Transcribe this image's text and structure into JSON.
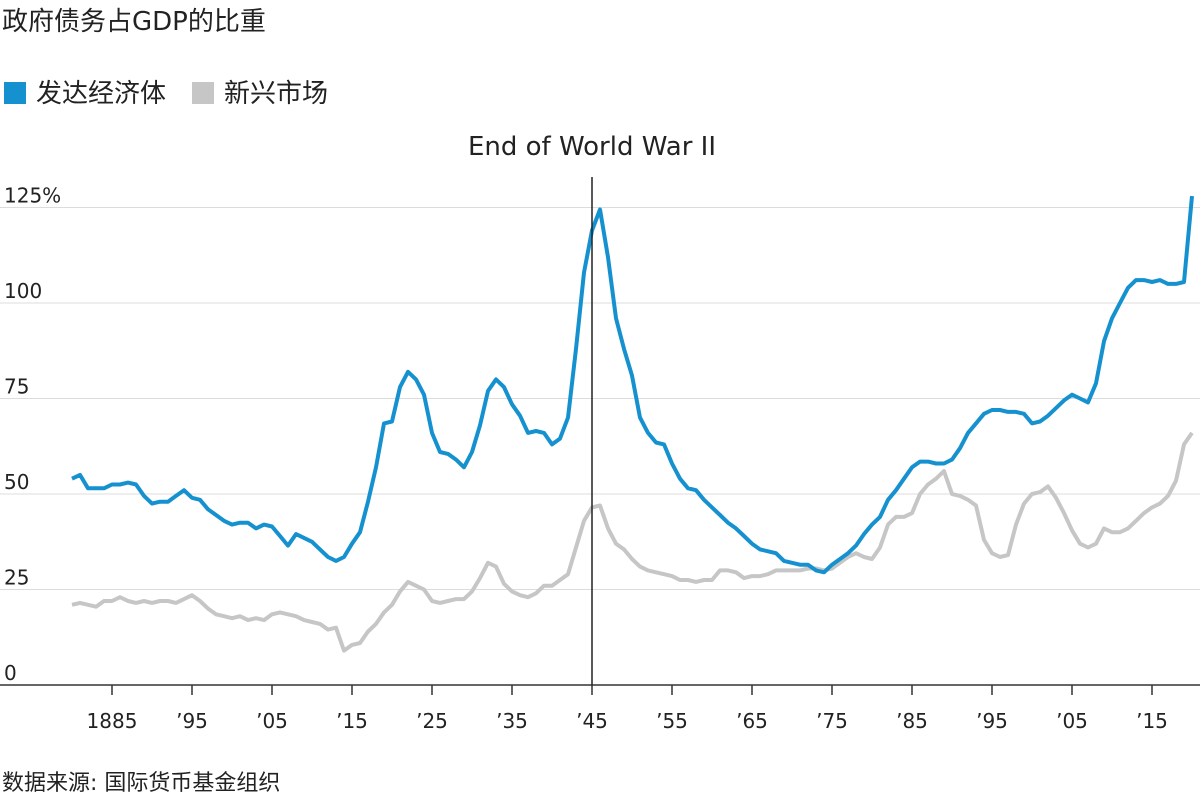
{
  "chart_data": {
    "type": "line",
    "title": "政府债务占GDP的比重",
    "source": "数据来源: 国际货币基金组织",
    "annotation": {
      "text": "End of World War II",
      "x": 1945
    },
    "x": [
      1880,
      1881,
      1882,
      1883,
      1884,
      1885,
      1886,
      1887,
      1888,
      1889,
      1890,
      1891,
      1892,
      1893,
      1894,
      1895,
      1896,
      1897,
      1898,
      1899,
      1900,
      1901,
      1902,
      1903,
      1904,
      1905,
      1906,
      1907,
      1908,
      1909,
      1910,
      1911,
      1912,
      1913,
      1914,
      1915,
      1916,
      1917,
      1918,
      1919,
      1920,
      1921,
      1922,
      1923,
      1924,
      1925,
      1926,
      1927,
      1928,
      1929,
      1930,
      1931,
      1932,
      1933,
      1934,
      1935,
      1936,
      1937,
      1938,
      1939,
      1940,
      1941,
      1942,
      1943,
      1944,
      1945,
      1946,
      1947,
      1948,
      1949,
      1950,
      1951,
      1952,
      1953,
      1954,
      1955,
      1956,
      1957,
      1958,
      1959,
      1960,
      1961,
      1962,
      1963,
      1964,
      1965,
      1966,
      1967,
      1968,
      1969,
      1970,
      1971,
      1972,
      1973,
      1974,
      1975,
      1976,
      1977,
      1978,
      1979,
      1980,
      1981,
      1982,
      1983,
      1984,
      1985,
      1986,
      1987,
      1988,
      1989,
      1990,
      1991,
      1992,
      1993,
      1994,
      1995,
      1996,
      1997,
      1998,
      1999,
      2000,
      2001,
      2002,
      2003,
      2004,
      2005,
      2006,
      2007,
      2008,
      2009,
      2010,
      2011,
      2012,
      2013,
      2014,
      2015,
      2016,
      2017,
      2018,
      2019,
      2020
    ],
    "series": [
      {
        "name": "发达经济体",
        "color": "#1691d0",
        "values": [
          54,
          55,
          51.5,
          51.5,
          51.5,
          52.5,
          52.5,
          53,
          52.5,
          49.5,
          47.5,
          48,
          48,
          49.5,
          51,
          49,
          48.5,
          46,
          44.5,
          43,
          42,
          42.5,
          42.5,
          41,
          42,
          41.5,
          39,
          36.5,
          39.5,
          38.5,
          37.5,
          35.5,
          33.5,
          32.5,
          33.5,
          37,
          40,
          48,
          57,
          68.5,
          69,
          78,
          82,
          80,
          76,
          66,
          61,
          60.5,
          59,
          57,
          61,
          68,
          77,
          80,
          78,
          73.5,
          70.5,
          66,
          66.5,
          66,
          63,
          64.5,
          70,
          88,
          108,
          119,
          124.5,
          112,
          96,
          88,
          81,
          70,
          66,
          63.5,
          63,
          58,
          54,
          51.5,
          51,
          48.5,
          46.5,
          44.5,
          42.5,
          41,
          39,
          37,
          35.5,
          35,
          34.5,
          32.5,
          32,
          31.5,
          31.5,
          30,
          29.5,
          31.5,
          33,
          34.5,
          36.5,
          39.5,
          42,
          44,
          48.5,
          51,
          54,
          57,
          58.5,
          58.5,
          58,
          58,
          59,
          62,
          66,
          68.5,
          71,
          72,
          72,
          71.5,
          71.5,
          71,
          68.5,
          69,
          70.5,
          72.5,
          74.5,
          76,
          75,
          74,
          79,
          90,
          96,
          100,
          104,
          106,
          106,
          105.5,
          106,
          105,
          105,
          105.5,
          128
        ]
      },
      {
        "name": "新兴市场",
        "color": "#c6c6c6",
        "values": [
          21,
          21.5,
          21,
          20.5,
          22,
          22,
          23,
          22,
          21.5,
          22,
          21.5,
          22,
          22,
          21.5,
          22.5,
          23.5,
          22,
          20,
          18.5,
          18,
          17.5,
          18,
          17,
          17.5,
          17,
          18.5,
          19,
          18.5,
          18,
          17,
          16.5,
          16,
          14.5,
          15,
          9,
          10.5,
          11,
          14,
          16,
          19,
          21,
          24.5,
          27,
          26,
          25,
          22,
          21.5,
          22,
          22.5,
          22.5,
          24.5,
          28,
          32,
          31,
          26.5,
          24.5,
          23.5,
          23,
          24,
          26,
          26,
          27.5,
          29,
          36,
          43,
          46.5,
          47,
          41,
          37,
          35.5,
          33,
          31,
          30,
          29.5,
          29,
          28.5,
          27.5,
          27.5,
          27,
          27.5,
          27.5,
          30,
          30,
          29.5,
          28,
          28.5,
          28.5,
          29,
          30,
          30,
          30,
          30,
          30.5,
          30.5,
          30,
          30.5,
          32,
          33.5,
          34.5,
          33.5,
          33,
          36,
          42,
          44,
          44,
          45,
          50,
          52.5,
          54,
          56,
          50,
          49.5,
          48.5,
          47,
          38,
          34.5,
          33.5,
          34,
          42,
          47.5,
          50,
          50.5,
          52,
          49,
          45,
          40.5,
          37,
          36,
          37,
          41,
          40,
          40,
          41,
          43,
          45,
          46.5,
          47.5,
          49.5,
          53.5,
          63,
          66
        ]
      }
    ],
    "xlim": [
      1871,
      2021
    ],
    "xticks": [
      {
        "value": 1885,
        "label": "1885"
      },
      {
        "value": 1895,
        "label": "’95"
      },
      {
        "value": 1905,
        "label": "’05"
      },
      {
        "value": 1915,
        "label": "’15"
      },
      {
        "value": 1925,
        "label": "’25"
      },
      {
        "value": 1935,
        "label": "’35"
      },
      {
        "value": 1945,
        "label": "’45"
      },
      {
        "value": 1955,
        "label": "’55"
      },
      {
        "value": 1965,
        "label": "’65"
      },
      {
        "value": 1975,
        "label": "’75"
      },
      {
        "value": 1985,
        "label": "’85"
      },
      {
        "value": 1995,
        "label": "’95"
      },
      {
        "value": 2005,
        "label": "’05"
      },
      {
        "value": 2015,
        "label": "’15"
      }
    ],
    "ylim": [
      0,
      133
    ],
    "yticks": [
      0,
      25,
      50,
      75,
      100,
      {
        "value": 125,
        "label": "125%"
      }
    ],
    "grid": true
  }
}
